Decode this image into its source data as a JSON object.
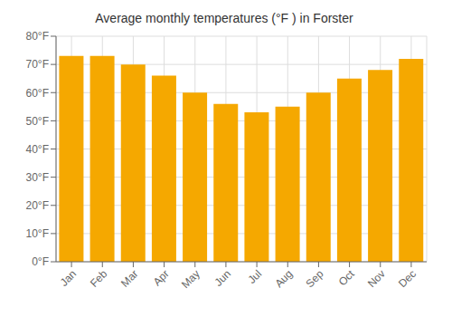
{
  "chart_data": {
    "type": "bar",
    "title": "Average monthly temperatures (°F ) in Forster",
    "categories": [
      "Jan",
      "Feb",
      "Mar",
      "Apr",
      "May",
      "Jun",
      "Jul",
      "Aug",
      "Sep",
      "Oct",
      "Nov",
      "Dec"
    ],
    "values": [
      73,
      73,
      70,
      66,
      60,
      56,
      53,
      55,
      60,
      65,
      68,
      72
    ],
    "color": "#F5A800",
    "ylim": [
      0,
      80
    ],
    "yticks": [
      {
        "value": 0,
        "label": "0°F"
      },
      {
        "value": 10,
        "label": "10°F"
      },
      {
        "value": 20,
        "label": "20°F"
      },
      {
        "value": 30,
        "label": "30°F"
      },
      {
        "value": 40,
        "label": "40°F"
      },
      {
        "value": 50,
        "label": "50°F"
      },
      {
        "value": 60,
        "label": "60°F"
      },
      {
        "value": 70,
        "label": "70°F"
      },
      {
        "value": 80,
        "label": "80°F"
      }
    ],
    "grid": true
  }
}
